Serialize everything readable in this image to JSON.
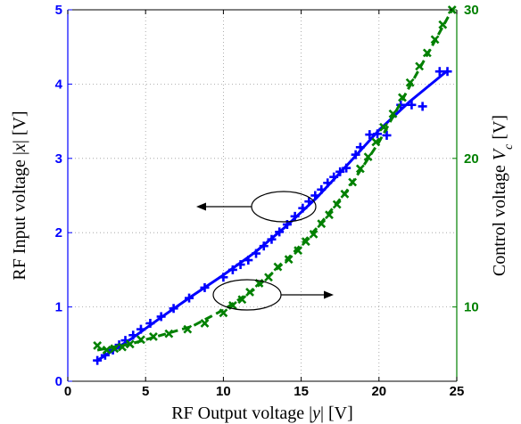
{
  "chart_data": {
    "type": "line",
    "title": "",
    "xlabel": "RF Output voltage |y| [V]",
    "xlabel_parts": [
      "RF Output voltage |",
      "y",
      "|  [V]"
    ],
    "ylabel_left": "RF Input voltage |x| [V]",
    "ylabel_left_parts": [
      "RF Input voltage |",
      "x",
      "|  [V]"
    ],
    "ylabel_right": "Control voltage V_c [V]",
    "ylabel_right_parts": [
      "Control voltage ",
      "V",
      "c",
      "  [V]"
    ],
    "xlim": [
      0,
      25
    ],
    "ylim_left": [
      0,
      5
    ],
    "ylim_right": [
      5,
      30
    ],
    "xticks": [
      "0",
      "5",
      "10",
      "15",
      "20",
      "25"
    ],
    "yticks_left": [
      "0",
      "1",
      "2",
      "3",
      "4",
      "5"
    ],
    "yticks_right": [
      "10",
      "20",
      "30"
    ],
    "grid": true,
    "colors": {
      "left": "#0000ff",
      "right": "#008000"
    },
    "series": [
      {
        "axis": "left",
        "color": "#0000ff",
        "line_style": "solid",
        "marker": "plus",
        "points": [
          [
            1.9,
            0.28
          ],
          [
            2.4,
            0.35
          ],
          [
            2.9,
            0.42
          ],
          [
            3.3,
            0.49
          ],
          [
            3.7,
            0.55
          ],
          [
            4.2,
            0.62
          ],
          [
            4.7,
            0.7
          ],
          [
            5.3,
            0.78
          ],
          [
            6.0,
            0.87
          ],
          [
            6.8,
            0.98
          ],
          [
            7.8,
            1.12
          ],
          [
            8.8,
            1.26
          ],
          [
            10.0,
            1.4
          ],
          [
            10.6,
            1.5
          ],
          [
            11.1,
            1.57
          ],
          [
            11.6,
            1.63
          ],
          [
            12.1,
            1.72
          ],
          [
            12.6,
            1.82
          ],
          [
            13.1,
            1.91
          ],
          [
            13.6,
            2.01
          ],
          [
            14.1,
            2.11
          ],
          [
            14.6,
            2.22
          ],
          [
            15.1,
            2.33
          ],
          [
            15.5,
            2.42
          ],
          [
            15.9,
            2.5
          ],
          [
            16.3,
            2.58
          ],
          [
            16.7,
            2.67
          ],
          [
            17.1,
            2.75
          ],
          [
            17.5,
            2.82
          ],
          [
            17.9,
            2.87
          ],
          [
            18.5,
            3.05
          ],
          [
            18.8,
            3.15
          ],
          [
            19.4,
            3.32
          ],
          [
            19.9,
            3.33
          ],
          [
            20.5,
            3.31
          ],
          [
            21.4,
            3.72
          ],
          [
            22.1,
            3.72
          ],
          [
            22.8,
            3.7
          ],
          [
            23.9,
            4.17
          ],
          [
            24.4,
            4.17
          ]
        ],
        "fit": [
          [
            1.9,
            0.28
          ],
          [
            4.0,
            0.56
          ],
          [
            6.0,
            0.86
          ],
          [
            8.0,
            1.15
          ],
          [
            10.0,
            1.43
          ],
          [
            12.0,
            1.73
          ],
          [
            14.0,
            2.08
          ],
          [
            16.0,
            2.47
          ],
          [
            18.0,
            2.92
          ],
          [
            20.0,
            3.38
          ],
          [
            22.0,
            3.77
          ],
          [
            24.4,
            4.18
          ]
        ]
      },
      {
        "axis": "right",
        "color": "#008000",
        "line_style": "dashed",
        "marker": "x",
        "points": [
          [
            1.9,
            7.4
          ],
          [
            2.5,
            7.1
          ],
          [
            3.0,
            7.2
          ],
          [
            3.5,
            7.3
          ],
          [
            4.0,
            7.5
          ],
          [
            4.7,
            7.8
          ],
          [
            5.5,
            8.0
          ],
          [
            6.5,
            8.2
          ],
          [
            7.7,
            8.5
          ],
          [
            8.8,
            8.9
          ],
          [
            10.0,
            9.6
          ],
          [
            10.6,
            10.1
          ],
          [
            11.2,
            10.5
          ],
          [
            11.7,
            11.0
          ],
          [
            12.3,
            11.6
          ],
          [
            12.9,
            12.0
          ],
          [
            13.5,
            12.7
          ],
          [
            14.2,
            13.2
          ],
          [
            14.8,
            13.8
          ],
          [
            15.3,
            14.4
          ],
          [
            15.8,
            14.9
          ],
          [
            16.3,
            15.6
          ],
          [
            16.8,
            16.2
          ],
          [
            17.3,
            16.9
          ],
          [
            17.8,
            17.6
          ],
          [
            18.3,
            18.4
          ],
          [
            18.8,
            19.3
          ],
          [
            19.3,
            20.1
          ],
          [
            19.8,
            21.1
          ],
          [
            20.3,
            22.1
          ],
          [
            20.9,
            23.0
          ],
          [
            21.5,
            24.1
          ],
          [
            22.0,
            25.1
          ],
          [
            22.6,
            26.2
          ],
          [
            23.1,
            27.1
          ],
          [
            23.6,
            28.0
          ],
          [
            24.1,
            29.0
          ],
          [
            24.7,
            30.0
          ]
        ],
        "fit": [
          [
            1.9,
            7.1
          ],
          [
            4.0,
            7.5
          ],
          [
            6.0,
            8.1
          ],
          [
            8.0,
            8.7
          ],
          [
            10.0,
            9.8
          ],
          [
            12.0,
            11.2
          ],
          [
            14.0,
            13.1
          ],
          [
            16.0,
            15.3
          ],
          [
            18.0,
            17.9
          ],
          [
            20.0,
            21.1
          ],
          [
            22.0,
            24.9
          ],
          [
            24.7,
            30.0
          ]
        ]
      }
    ]
  }
}
